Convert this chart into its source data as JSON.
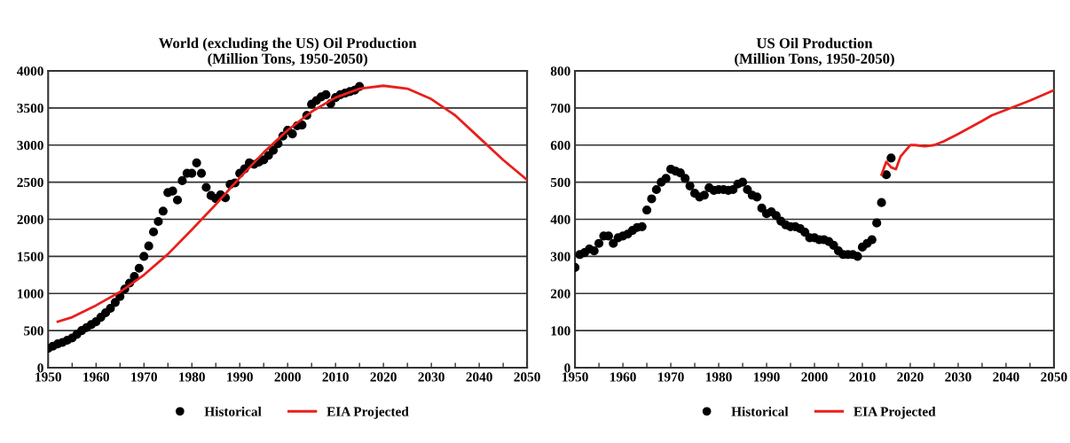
{
  "chart_data": [
    {
      "type": "scatter",
      "title": "World (excluding the US) Oil Production\n(Million Tons, 1950-2050)",
      "xlim": [
        1950,
        2050
      ],
      "ylim": [
        0,
        4000
      ],
      "xticks": [
        1950,
        {
          "value": 1955,
          "label": null
        },
        1960,
        {
          "value": 1965,
          "label": null
        },
        1970,
        {
          "value": 1975,
          "label": null
        },
        1980,
        {
          "value": 1985,
          "label": null
        },
        1990,
        {
          "value": 1995,
          "label": null
        },
        2000,
        {
          "value": 2005,
          "label": null
        },
        2010,
        {
          "value": 2015,
          "label": null
        },
        2020,
        {
          "value": 2025,
          "label": null
        },
        2030,
        {
          "value": 2035,
          "label": null
        },
        2040,
        {
          "value": 2045,
          "label": null
        },
        2050
      ],
      "yticks": [
        0,
        500,
        1000,
        1500,
        2000,
        2500,
        3000,
        3500,
        4000
      ],
      "grid": "y",
      "legend": "bottom",
      "series": [
        {
          "name": "Historical",
          "marker": "circle",
          "color": "#000000",
          "x": [
            1950,
            1951,
            1952,
            1953,
            1954,
            1955,
            1956,
            1957,
            1958,
            1959,
            1960,
            1961,
            1962,
            1963,
            1964,
            1965,
            1966,
            1967,
            1968,
            1969,
            1970,
            1971,
            1972,
            1973,
            1974,
            1975,
            1976,
            1977,
            1978,
            1979,
            1980,
            1981,
            1982,
            1983,
            1984,
            1985,
            1986,
            1987,
            1988,
            1989,
            1990,
            1991,
            1992,
            1993,
            1994,
            1995,
            1996,
            1997,
            1998,
            1999,
            2000,
            2001,
            2002,
            2003,
            2004,
            2005,
            2006,
            2007,
            2008,
            2009,
            2010,
            2011,
            2012,
            2013,
            2014,
            2015
          ],
          "values": [
            260,
            290,
            320,
            340,
            370,
            400,
            450,
            500,
            540,
            580,
            620,
            680,
            740,
            800,
            880,
            960,
            1060,
            1140,
            1230,
            1340,
            1500,
            1640,
            1830,
            1970,
            2110,
            2360,
            2380,
            2260,
            2520,
            2620,
            2620,
            2760,
            2620,
            2430,
            2320,
            2280,
            2330,
            2290,
            2470,
            2490,
            2620,
            2680,
            2760,
            2740,
            2770,
            2800,
            2860,
            2930,
            3020,
            3120,
            3200,
            3150,
            3260,
            3270,
            3400,
            3550,
            3600,
            3650,
            3680,
            3560,
            3640,
            3680,
            3700,
            3720,
            3740,
            3790
          ]
        },
        {
          "name": "EIA Projected",
          "type": "line",
          "marker": "none",
          "line_style": "solid",
          "color": "#e8201c",
          "x": [
            1952,
            1955,
            1960,
            1965,
            1970,
            1975,
            1980,
            1985,
            1990,
            1995,
            2000,
            2005,
            2010,
            2015,
            2020,
            2025,
            2030,
            2035,
            2040,
            2045,
            2050
          ],
          "values": [
            620,
            680,
            840,
            1020,
            1250,
            1530,
            1860,
            2200,
            2560,
            2900,
            3200,
            3450,
            3640,
            3760,
            3800,
            3760,
            3620,
            3400,
            3100,
            2800,
            2530
          ]
        }
      ]
    },
    {
      "type": "scatter",
      "title": "US Oil Production\n(Million Tons, 1950-2050)",
      "xlim": [
        1950,
        2050
      ],
      "ylim": [
        0,
        800
      ],
      "xticks": [
        1950,
        {
          "value": 1955,
          "label": null
        },
        1960,
        {
          "value": 1965,
          "label": null
        },
        1970,
        {
          "value": 1975,
          "label": null
        },
        1980,
        {
          "value": 1985,
          "label": null
        },
        1990,
        {
          "value": 1995,
          "label": null
        },
        2000,
        {
          "value": 2005,
          "label": null
        },
        2010,
        {
          "value": 2015,
          "label": null
        },
        2020,
        {
          "value": 2025,
          "label": null
        },
        2030,
        {
          "value": 2035,
          "label": null
        },
        2040,
        {
          "value": 2045,
          "label": null
        },
        2050
      ],
      "yticks": [
        0,
        100,
        200,
        300,
        400,
        500,
        600,
        700,
        800
      ],
      "grid": "y",
      "legend": "bottom",
      "series": [
        {
          "name": "Historical",
          "marker": "circle",
          "color": "#000000",
          "x": [
            1950,
            1951,
            1952,
            1953,
            1954,
            1955,
            1956,
            1957,
            1958,
            1959,
            1960,
            1961,
            1962,
            1963,
            1964,
            1965,
            1966,
            1967,
            1968,
            1969,
            1970,
            1971,
            1972,
            1973,
            1974,
            1975,
            1976,
            1977,
            1978,
            1979,
            1980,
            1981,
            1982,
            1983,
            1984,
            1985,
            1986,
            1987,
            1988,
            1989,
            1990,
            1991,
            1992,
            1993,
            1994,
            1995,
            1996,
            1997,
            1998,
            1999,
            2000,
            2001,
            2002,
            2003,
            2004,
            2005,
            2006,
            2007,
            2008,
            2009,
            2010,
            2011,
            2012,
            2013,
            2014,
            2015,
            2016
          ],
          "values": [
            270,
            305,
            310,
            320,
            315,
            335,
            355,
            355,
            335,
            350,
            355,
            360,
            370,
            378,
            380,
            425,
            455,
            480,
            500,
            510,
            535,
            530,
            525,
            510,
            490,
            470,
            460,
            465,
            485,
            478,
            480,
            480,
            478,
            480,
            495,
            500,
            480,
            465,
            460,
            430,
            415,
            420,
            410,
            395,
            385,
            380,
            380,
            375,
            365,
            350,
            350,
            345,
            345,
            340,
            330,
            315,
            305,
            305,
            305,
            300,
            325,
            335,
            345,
            390,
            445,
            520,
            565
          ]
        },
        {
          "name": "EIA Projected",
          "type": "line",
          "marker": "none",
          "line_style": "solid",
          "color": "#e8201c",
          "x": [
            2014,
            2015,
            2016,
            2017,
            2018,
            2019,
            2020,
            2021,
            2023,
            2025,
            2027,
            2030,
            2035,
            2037,
            2040,
            2045,
            2050
          ],
          "values": [
            520,
            555,
            540,
            535,
            570,
            585,
            600,
            600,
            597,
            600,
            610,
            630,
            665,
            680,
            695,
            720,
            748
          ]
        }
      ]
    }
  ]
}
